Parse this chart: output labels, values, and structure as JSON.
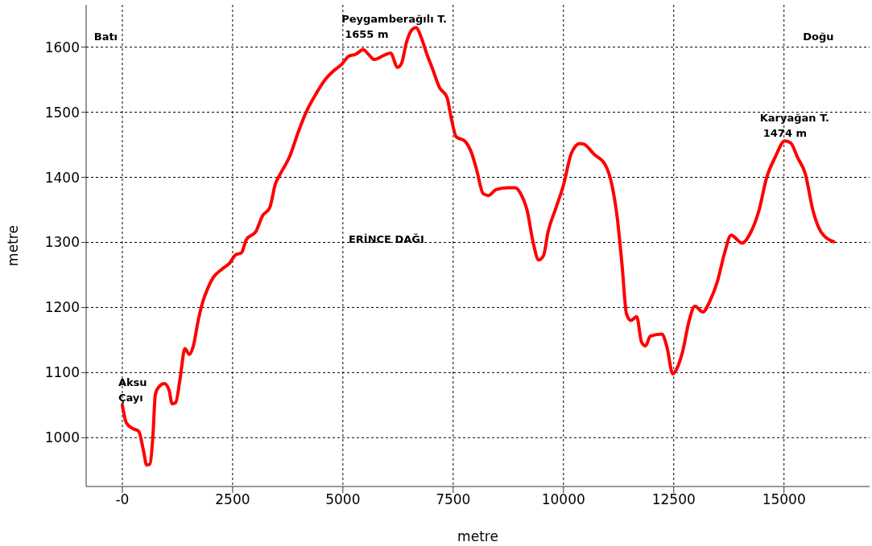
{
  "chart_data": {
    "type": "line",
    "xlabel": "metre",
    "ylabel": "metre",
    "xlim": [
      -820,
      16940
    ],
    "ylim": [
      925,
      1665
    ],
    "xticks": [
      {
        "value": 0,
        "label": "-0"
      },
      2500,
      5000,
      7500,
      10000,
      12500,
      15000
    ],
    "yticks": [
      1000,
      1100,
      1200,
      1300,
      1400,
      1500,
      1600
    ],
    "grid": true,
    "marker": "none",
    "line_style": "solid",
    "annotations": [
      "Batı",
      "Peygamberağılı T.\n1655 m",
      "Doğu",
      "Karyağan T.\n1474 m",
      "ERİNCE DAĞI",
      "Aksu\nÇayı"
    ],
    "series": [
      {
        "color": "#ff0000",
        "x": [
          0,
          90,
          240,
          370,
          480,
          550,
          620,
          690,
          750,
          840,
          950,
          1060,
          1130,
          1210,
          1310,
          1420,
          1520,
          1610,
          1720,
          1830,
          1940,
          2060,
          2260,
          2430,
          2570,
          2700,
          2810,
          3030,
          3180,
          3340,
          3470,
          3580,
          3800,
          3980,
          4160,
          4380,
          4620,
          4780,
          4980,
          5130,
          5290,
          5460,
          5580,
          5710,
          5950,
          6080,
          6240,
          6330,
          6440,
          6570,
          6660,
          6770,
          6900,
          7030,
          7190,
          7360,
          7450,
          7570,
          7760,
          7920,
          8030,
          8180,
          8300,
          8470,
          8720,
          8910,
          9030,
          9180,
          9310,
          9440,
          9550,
          9650,
          9820,
          10000,
          10180,
          10370,
          10460,
          10700,
          10950,
          11100,
          11220,
          11330,
          11430,
          11530,
          11660,
          11770,
          11860,
          11970,
          12230,
          12340,
          12480,
          12570,
          12700,
          12850,
          12980,
          13160,
          13320,
          13490,
          13650,
          13800,
          14050,
          14250,
          14440,
          14600,
          14800,
          15020,
          15150,
          15310,
          15480,
          15660,
          15840,
          16130
        ],
        "values": [
          1050,
          1023,
          1014,
          1010,
          980,
          958,
          959,
          999,
          1067,
          1079,
          1083,
          1073,
          1052,
          1054,
          1091,
          1137,
          1128,
          1141,
          1180,
          1210,
          1230,
          1246,
          1259,
          1268,
          1281,
          1284,
          1304,
          1317,
          1341,
          1353,
          1390,
          1405,
          1433,
          1468,
          1499,
          1527,
          1552,
          1563,
          1574,
          1586,
          1589,
          1596,
          1589,
          1581,
          1588,
          1591,
          1569,
          1575,
          1607,
          1627,
          1630,
          1616,
          1590,
          1567,
          1538,
          1523,
          1493,
          1462,
          1456,
          1437,
          1412,
          1375,
          1372,
          1381,
          1384,
          1384,
          1375,
          1348,
          1301,
          1273,
          1280,
          1316,
          1351,
          1388,
          1437,
          1452,
          1451,
          1435,
          1419,
          1388,
          1338,
          1264,
          1190,
          1180,
          1186,
          1147,
          1141,
          1156,
          1159,
          1141,
          1098,
          1106,
          1132,
          1180,
          1202,
          1193,
          1210,
          1240,
          1283,
          1311,
          1299,
          1316,
          1351,
          1398,
          1431,
          1456,
          1453,
          1430,
          1406,
          1348,
          1316,
          1301
        ]
      }
    ]
  }
}
